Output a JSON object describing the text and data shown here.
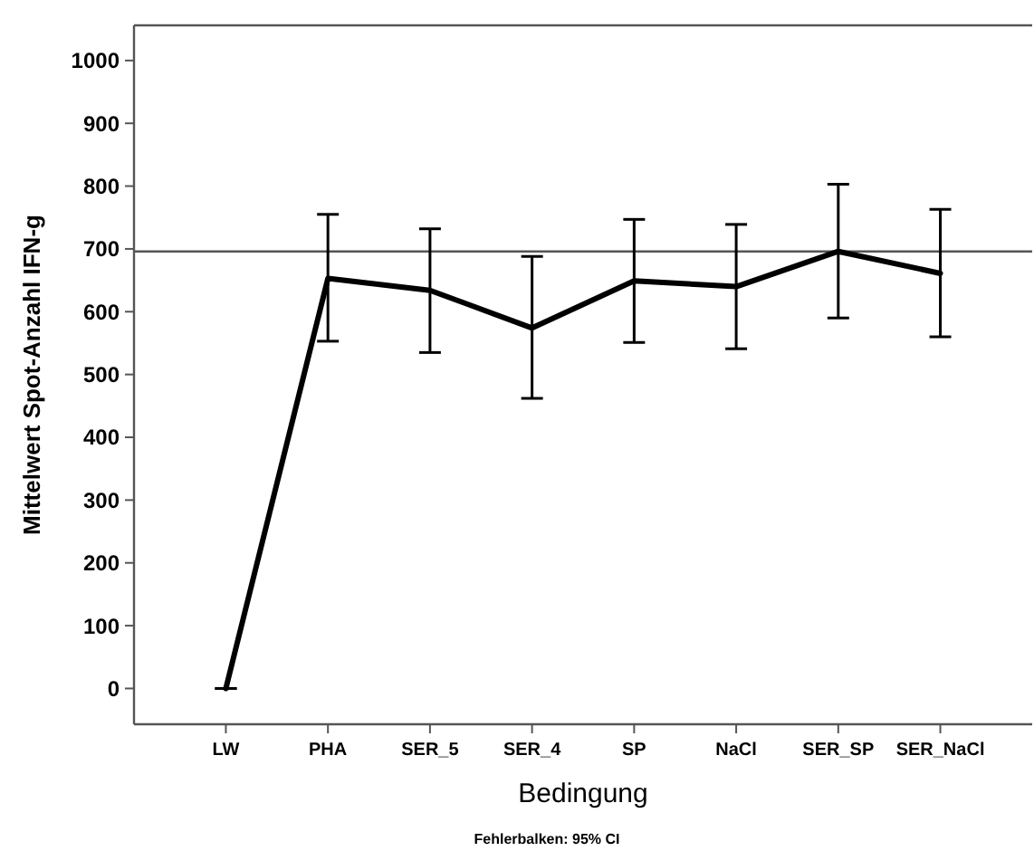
{
  "chart_data": {
    "type": "line",
    "xlabel": "Bedingung",
    "ylabel": "Mittelwert Spot-Anzahl IFN-g",
    "annotations": [
      "Fehlerbalken: 95% CI"
    ],
    "categories": [
      "LW",
      "PHA",
      "SER_5",
      "SER_4",
      "SP",
      "NaCl",
      "SER_SP",
      "SER_NaCl"
    ],
    "series": [
      {
        "color": "#000000",
        "values": [
          0,
          653,
          634,
          574,
          649,
          640,
          696,
          661
        ],
        "errors": [
          [
            0,
            0
          ],
          [
            553,
            755
          ],
          [
            535,
            732
          ],
          [
            462,
            688
          ],
          [
            551,
            747
          ],
          [
            541,
            739
          ],
          [
            590,
            803
          ],
          [
            560,
            763
          ]
        ]
      }
    ],
    "ylim": [
      -57,
      1056
    ],
    "yticks": [
      0,
      100,
      200,
      300,
      400,
      500,
      600,
      700,
      800,
      900,
      1000
    ],
    "ref_lines": [
      {
        "axis": "y",
        "value": 696,
        "color": "#555555"
      }
    ],
    "grid": false,
    "marker": "none",
    "line_style": "solid"
  }
}
